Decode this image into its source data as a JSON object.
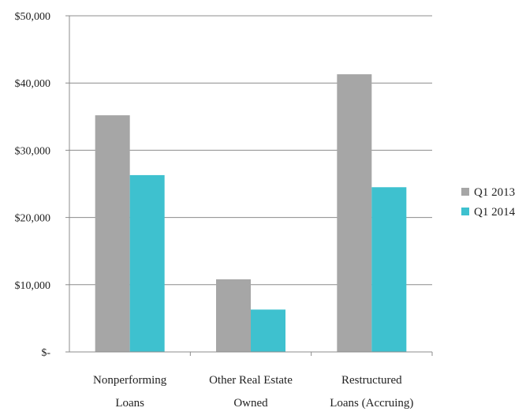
{
  "chart_data": {
    "type": "bar",
    "title": "",
    "xlabel": "",
    "ylabel": "",
    "categories": [
      [
        "Nonperforming",
        "Loans"
      ],
      [
        "Other Real Estate",
        "Owned"
      ],
      [
        "Restructured",
        "Loans (Accruing)"
      ]
    ],
    "series": [
      {
        "name": "Q1 2013",
        "color": "#a6a6a6",
        "values": [
          35200,
          10800,
          41300
        ]
      },
      {
        "name": "Q1 2014",
        "color": "#3ec1cf",
        "values": [
          26300,
          6300,
          24500
        ]
      }
    ],
    "ylim": [
      0,
      50000
    ],
    "yticks": [
      {
        "value": 0,
        "label": "$-"
      },
      {
        "value": 10000,
        "label": "$10,000"
      },
      {
        "value": 20000,
        "label": "$20,000"
      },
      {
        "value": 30000,
        "label": "$30,000"
      },
      {
        "value": 40000,
        "label": "$40,000"
      },
      {
        "value": 50000,
        "label": "$50,000"
      }
    ],
    "grid": true,
    "legend": "right"
  }
}
